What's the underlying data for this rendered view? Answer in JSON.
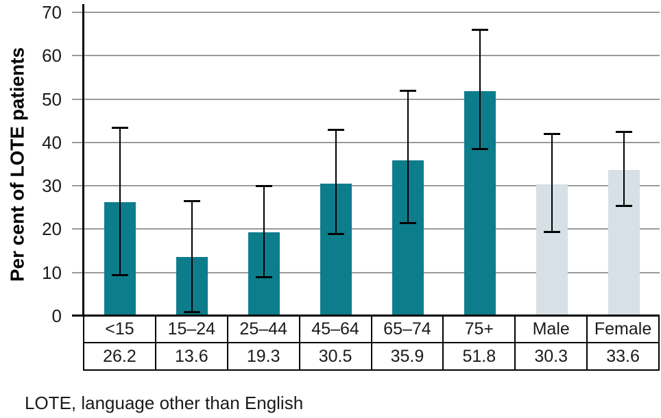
{
  "figure": {
    "footnote": "LOTE, language other than English"
  },
  "colors": {
    "age_bar": "#0e7d8b",
    "sex_bar": "#d6e0e6",
    "gridline": "#9a9a9a",
    "axis": "#000000",
    "background": "#ffffff"
  },
  "chart_data": {
    "type": "bar",
    "title": "",
    "xlabel": "",
    "ylabel": "Per cent of LOTE patients",
    "ylim": [
      0,
      70
    ],
    "yticks": [
      0,
      10,
      20,
      30,
      40,
      50,
      60,
      70
    ],
    "grid": true,
    "legend_position": "none",
    "categories": [
      "<15",
      "15–24",
      "25–44",
      "45–64",
      "65–74",
      "75+",
      "Male",
      "Female"
    ],
    "values": [
      26.2,
      13.6,
      19.3,
      30.5,
      35.9,
      51.8,
      30.3,
      33.6
    ],
    "error_bars": {
      "low": [
        9.5,
        1.0,
        9.0,
        19.0,
        21.5,
        38.5,
        19.5,
        25.5
      ],
      "high": [
        43.5,
        26.5,
        30.0,
        43.0,
        52.0,
        66.0,
        42.0,
        42.5
      ]
    },
    "bar_groups": [
      "age",
      "age",
      "age",
      "age",
      "age",
      "age",
      "sex",
      "sex"
    ],
    "data_table_values": [
      "26.2",
      "13.6",
      "19.3",
      "30.5",
      "35.9",
      "51.8",
      "30.3",
      "33.6"
    ]
  }
}
